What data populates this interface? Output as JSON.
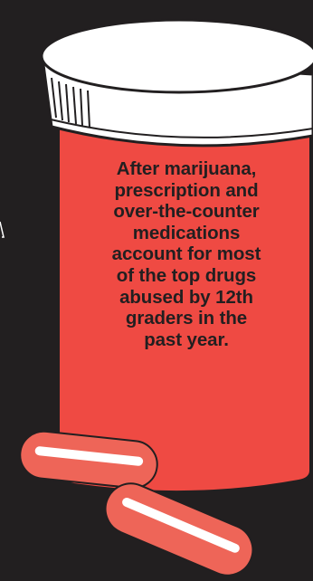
{
  "caption": {
    "text": "After marijuana,\nprescription and\nover-the-counter\nmedications\naccount for most\nof the top drugs\nabused by 12th\ngraders in the\npast year."
  },
  "colors": {
    "background": "#221f20",
    "bottle": "#ef4a43",
    "cap": "#ffffff",
    "pill": "#ee6558",
    "outline": "#221f20"
  },
  "icons": {
    "bottle": "pill-bottle-icon",
    "pill": "capsule-pill-icon"
  }
}
